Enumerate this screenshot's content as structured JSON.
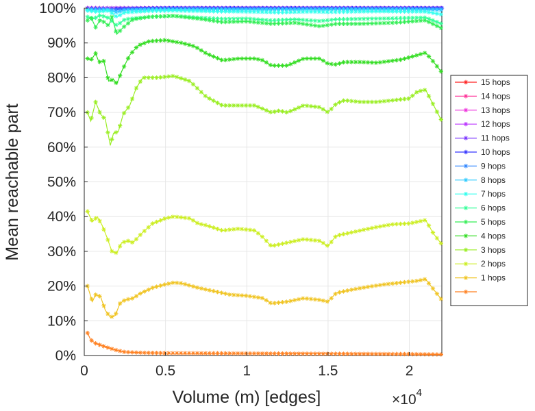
{
  "chart_data": {
    "type": "line",
    "title": "",
    "xlabel": "Volume (m) [edges]",
    "ylabel": "Mean reachable part",
    "x_multiplier_label": "×10",
    "x_multiplier_exponent": "4",
    "xlim": [
      0,
      22000
    ],
    "ylim": [
      0,
      100
    ],
    "xticks": [
      0,
      5000,
      10000,
      15000,
      20000
    ],
    "xtick_labels": [
      "0",
      "0.5",
      "1",
      "1.5",
      "2"
    ],
    "yticks": [
      0,
      10,
      20,
      30,
      40,
      50,
      60,
      70,
      80,
      90,
      100
    ],
    "ytick_labels": [
      "0%",
      "10%",
      "20%",
      "30%",
      "40%",
      "50%",
      "60%",
      "70%",
      "80%",
      "90%",
      "100%"
    ],
    "grid": true,
    "legend_position": "right",
    "marker": "asterisk",
    "series": [
      {
        "name": "15 hops",
        "color": "#ff2020",
        "points": [
          [
            200,
            100
          ],
          [
            2000,
            100
          ],
          [
            22000,
            100
          ]
        ]
      },
      {
        "name": "14 hops",
        "color": "#ff3399",
        "points": [
          [
            200,
            100
          ],
          [
            2000,
            100
          ],
          [
            22000,
            100
          ]
        ]
      },
      {
        "name": "13 hops",
        "color": "#ee33dd",
        "points": [
          [
            200,
            100
          ],
          [
            2000,
            100
          ],
          [
            22000,
            100
          ]
        ]
      },
      {
        "name": "12 hops",
        "color": "#bb33ff",
        "points": [
          [
            200,
            100
          ],
          [
            2000,
            100
          ],
          [
            22000,
            100
          ]
        ]
      },
      {
        "name": "11 hops",
        "color": "#7a33ff",
        "points": [
          [
            200,
            100
          ],
          [
            2000,
            100
          ],
          [
            22000,
            100
          ]
        ]
      },
      {
        "name": "10 hops",
        "color": "#3333ff",
        "points": [
          [
            2000,
            99.8
          ],
          [
            5000,
            100
          ],
          [
            10000,
            100
          ],
          [
            15000,
            100
          ],
          [
            22000,
            100
          ]
        ]
      },
      {
        "name": "9 hops",
        "color": "#3388ff",
        "points": [
          [
            200,
            99.7
          ],
          [
            1000,
            99.8
          ],
          [
            2000,
            99.5
          ],
          [
            4000,
            99.8
          ],
          [
            10000,
            99.8
          ],
          [
            15000,
            99.8
          ],
          [
            22000,
            99.8
          ]
        ]
      },
      {
        "name": "8 hops",
        "color": "#33ccff",
        "points": [
          [
            200,
            99.6
          ],
          [
            800,
            99.4
          ],
          [
            1500,
            99.6
          ],
          [
            2000,
            98.8
          ],
          [
            2500,
            99.5
          ],
          [
            5000,
            99.7
          ],
          [
            10000,
            99.6
          ],
          [
            15000,
            99.7
          ],
          [
            20000,
            99.7
          ],
          [
            22000,
            99.5
          ]
        ]
      },
      {
        "name": "7 hops",
        "color": "#33ffee",
        "points": [
          [
            200,
            99.3
          ],
          [
            800,
            99
          ],
          [
            1500,
            99.3
          ],
          [
            2000,
            97.5
          ],
          [
            2500,
            98.8
          ],
          [
            4000,
            99.2
          ],
          [
            5500,
            99.3
          ],
          [
            8000,
            99.1
          ],
          [
            10000,
            99
          ],
          [
            12000,
            98.8
          ],
          [
            14000,
            99
          ],
          [
            15000,
            98.9
          ],
          [
            18000,
            99.1
          ],
          [
            21000,
            99
          ],
          [
            22000,
            98.2
          ]
        ]
      },
      {
        "name": "6 hops",
        "color": "#33ff99",
        "points": [
          [
            200,
            97.5
          ],
          [
            600,
            97
          ],
          [
            1000,
            98
          ],
          [
            1500,
            97.2
          ],
          [
            2000,
            95
          ],
          [
            2500,
            96.8
          ],
          [
            4000,
            97.5
          ],
          [
            5500,
            97.8
          ],
          [
            7000,
            97.3
          ],
          [
            8500,
            96.9
          ],
          [
            10000,
            97.0
          ],
          [
            11500,
            96.5
          ],
          [
            13000,
            96.8
          ],
          [
            14500,
            96.3
          ],
          [
            15500,
            96.8
          ],
          [
            18000,
            97.0
          ],
          [
            21000,
            97.3
          ],
          [
            22000,
            95.5
          ]
        ]
      },
      {
        "name": "5 hops",
        "color": "#33ee55",
        "points": [
          [
            200,
            96.5
          ],
          [
            400,
            97.5
          ],
          [
            700,
            94.5
          ],
          [
            1000,
            96.8
          ],
          [
            1500,
            95
          ],
          [
            1700,
            97.5
          ],
          [
            2000,
            92.5
          ],
          [
            2400,
            94.5
          ],
          [
            3000,
            96.8
          ],
          [
            4000,
            97.5
          ],
          [
            5500,
            97.8
          ],
          [
            7000,
            97
          ],
          [
            8500,
            96
          ],
          [
            10000,
            96.2
          ],
          [
            11500,
            95.5
          ],
          [
            13000,
            95.8
          ],
          [
            14500,
            94.8
          ],
          [
            15500,
            95.5
          ],
          [
            17000,
            95.5
          ],
          [
            19000,
            95.8
          ],
          [
            21000,
            96.5
          ],
          [
            22000,
            94.2
          ]
        ]
      },
      {
        "name": "4 hops",
        "color": "#33dd22",
        "points": [
          [
            200,
            85.5
          ],
          [
            400,
            85
          ],
          [
            700,
            87
          ],
          [
            900,
            84.5
          ],
          [
            1200,
            84.8
          ],
          [
            1500,
            79
          ],
          [
            1800,
            79.5
          ],
          [
            2000,
            78.2
          ],
          [
            2300,
            81.8
          ],
          [
            2800,
            86.5
          ],
          [
            3300,
            89.2
          ],
          [
            4000,
            90.5
          ],
          [
            5000,
            90.8
          ],
          [
            6000,
            90
          ],
          [
            6800,
            89
          ],
          [
            7500,
            87
          ],
          [
            8000,
            86
          ],
          [
            8500,
            85
          ],
          [
            9500,
            85.5
          ],
          [
            10500,
            85.5
          ],
          [
            11000,
            85
          ],
          [
            11500,
            83.5
          ],
          [
            12500,
            83.5
          ],
          [
            13500,
            85.5
          ],
          [
            14500,
            85.5
          ],
          [
            15000,
            84
          ],
          [
            15500,
            83.8
          ],
          [
            16000,
            84.5
          ],
          [
            17000,
            84.5
          ],
          [
            18000,
            84.3
          ],
          [
            19500,
            85.2
          ],
          [
            20500,
            86.5
          ],
          [
            21000,
            87.2
          ],
          [
            21500,
            84.5
          ],
          [
            22000,
            81.5
          ]
        ]
      },
      {
        "name": "3 hops",
        "color": "#99ee22",
        "points": [
          [
            200,
            70
          ],
          [
            400,
            67.5
          ],
          [
            700,
            73
          ],
          [
            1000,
            69.5
          ],
          [
            1300,
            68
          ],
          [
            1600,
            60.5
          ],
          [
            1800,
            64
          ],
          [
            2100,
            64.5
          ],
          [
            2400,
            69.5
          ],
          [
            2800,
            72
          ],
          [
            3200,
            77
          ],
          [
            3600,
            80
          ],
          [
            4500,
            80
          ],
          [
            5500,
            80.5
          ],
          [
            6500,
            79
          ],
          [
            7500,
            74.5
          ],
          [
            8500,
            72
          ],
          [
            9500,
            72
          ],
          [
            10500,
            72
          ],
          [
            11500,
            70
          ],
          [
            12000,
            70.5
          ],
          [
            12500,
            70
          ],
          [
            13500,
            72
          ],
          [
            14500,
            71.5
          ],
          [
            15000,
            70
          ],
          [
            15500,
            72.5
          ],
          [
            16000,
            73.5
          ],
          [
            17000,
            73
          ],
          [
            18000,
            73
          ],
          [
            19000,
            73.5
          ],
          [
            20000,
            74
          ],
          [
            20500,
            76
          ],
          [
            21000,
            76.5
          ],
          [
            21500,
            72
          ],
          [
            22000,
            67.5
          ]
        ]
      },
      {
        "name": "2 hops",
        "color": "#ccee22",
        "points": [
          [
            200,
            41.5
          ],
          [
            500,
            38.5
          ],
          [
            800,
            40
          ],
          [
            1100,
            37.5
          ],
          [
            1400,
            34
          ],
          [
            1700,
            30
          ],
          [
            2000,
            29.5
          ],
          [
            2300,
            32.5
          ],
          [
            2700,
            33
          ],
          [
            3000,
            32.5
          ],
          [
            3500,
            35
          ],
          [
            4200,
            38
          ],
          [
            5000,
            39.5
          ],
          [
            5500,
            40
          ],
          [
            6500,
            39.5
          ],
          [
            7000,
            38
          ],
          [
            7500,
            37.5
          ],
          [
            8500,
            36
          ],
          [
            9500,
            36.5
          ],
          [
            10500,
            36
          ],
          [
            11000,
            34
          ],
          [
            11500,
            31.5
          ],
          [
            12500,
            32.5
          ],
          [
            13500,
            33.5
          ],
          [
            14500,
            33
          ],
          [
            15000,
            31.5
          ],
          [
            15500,
            34.5
          ],
          [
            17000,
            36
          ],
          [
            18000,
            37
          ],
          [
            19000,
            37.8
          ],
          [
            20000,
            38
          ],
          [
            20500,
            38.5
          ],
          [
            21000,
            39
          ],
          [
            21500,
            35
          ],
          [
            22000,
            32
          ]
        ]
      },
      {
        "name": "1 hops",
        "color": "#f0c422",
        "points": [
          [
            200,
            20
          ],
          [
            500,
            15.5
          ],
          [
            700,
            17.5
          ],
          [
            1000,
            17
          ],
          [
            1300,
            13
          ],
          [
            1600,
            11
          ],
          [
            1900,
            11.5
          ],
          [
            2200,
            15
          ],
          [
            2500,
            16
          ],
          [
            3000,
            16.5
          ],
          [
            3500,
            18
          ],
          [
            4200,
            19.5
          ],
          [
            5000,
            20.5
          ],
          [
            5500,
            21
          ],
          [
            6000,
            20.8
          ],
          [
            7000,
            19.5
          ],
          [
            8000,
            18.5
          ],
          [
            9000,
            17.5
          ],
          [
            10000,
            17.2
          ],
          [
            11000,
            16.5
          ],
          [
            11500,
            15
          ],
          [
            12500,
            15.5
          ],
          [
            13500,
            16.5
          ],
          [
            14500,
            16
          ],
          [
            15000,
            15.5
          ],
          [
            15500,
            18
          ],
          [
            16500,
            19
          ],
          [
            17500,
            19.8
          ],
          [
            18500,
            20.5
          ],
          [
            19500,
            21
          ],
          [
            20500,
            21.5
          ],
          [
            21000,
            22
          ],
          [
            21500,
            19
          ],
          [
            22000,
            16
          ]
        ]
      },
      {
        "name": "",
        "color": "#ff8020",
        "points": [
          [
            200,
            6.5
          ],
          [
            400,
            4.5
          ],
          [
            700,
            3.5
          ],
          [
            1000,
            3
          ],
          [
            1500,
            2.2
          ],
          [
            2000,
            1.5
          ],
          [
            2500,
            1
          ],
          [
            3500,
            0.8
          ],
          [
            5000,
            0.7
          ],
          [
            10000,
            0.6
          ],
          [
            15000,
            0.5
          ],
          [
            20000,
            0.4
          ],
          [
            22000,
            0.3
          ]
        ]
      }
    ]
  }
}
